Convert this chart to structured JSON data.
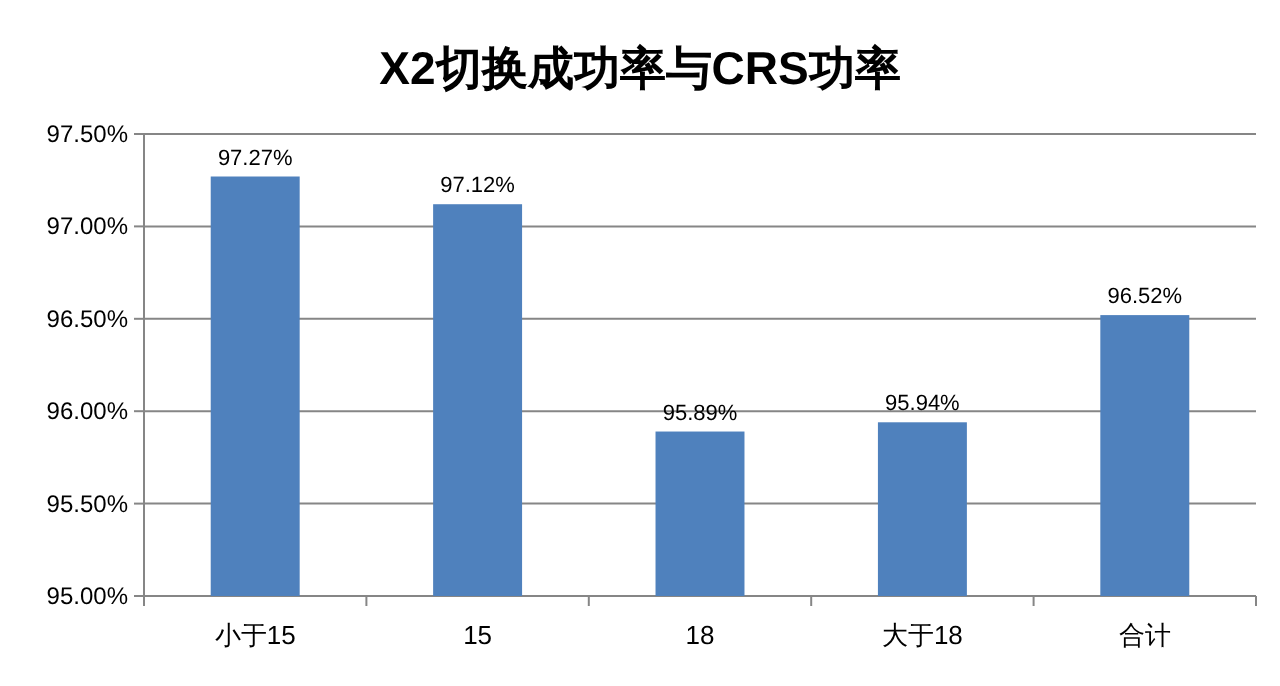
{
  "chart_data": {
    "type": "bar",
    "title": "X2切换成功率与CRS功率",
    "categories": [
      "小于15",
      "15",
      "18",
      "大于18",
      "合计"
    ],
    "values": [
      97.27,
      97.12,
      95.89,
      95.94,
      96.52
    ],
    "value_labels": [
      "97.27%",
      "97.12%",
      "95.89%",
      "95.94%",
      "96.52%"
    ],
    "color": "#4f81bd",
    "ylim": [
      95,
      97.5
    ],
    "yticks": [
      {
        "value": 95,
        "label": "95.00%"
      },
      {
        "value": 95.5,
        "label": "95.50%"
      },
      {
        "value": 96,
        "label": "96.00%"
      },
      {
        "value": 96.5,
        "label": "96.50%"
      },
      {
        "value": 97,
        "label": "97.00%"
      },
      {
        "value": 97.5,
        "label": "97.50%"
      }
    ],
    "grid": "y"
  }
}
